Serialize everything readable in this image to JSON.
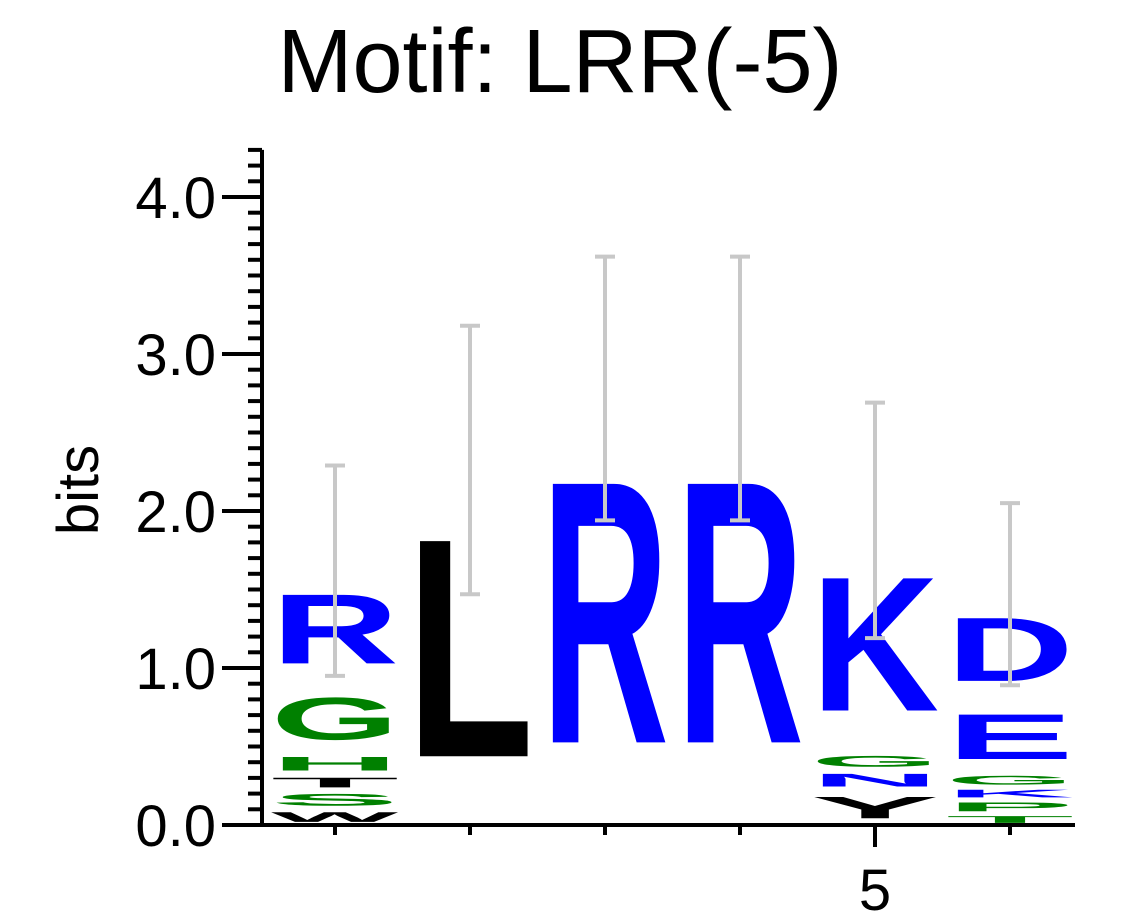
{
  "chart_data": {
    "type": "sequence-logo",
    "title": "Motif: LRR(-5)",
    "ylabel": "bits",
    "ylim": [
      0,
      4.3
    ],
    "yticks": [
      {
        "value": 0,
        "label": "0.0"
      },
      {
        "value": 1,
        "label": "1.0"
      },
      {
        "value": 2,
        "label": "2.0"
      },
      {
        "value": 3,
        "label": "3.0"
      },
      {
        "value": 4,
        "label": "4.0"
      }
    ],
    "xtick_labels": [
      {
        "position": 5,
        "label": "5"
      }
    ],
    "colors": {
      "hydrophobic": "#000000",
      "polar": "#008000",
      "charged": "#0000ff",
      "error_bar": "#c8c8c8"
    },
    "positions": [
      {
        "position": 1,
        "stack": [
          {
            "letter": "W",
            "color": "#000000",
            "height": 0.1
          },
          {
            "letter": "S",
            "color": "#008000",
            "height": 0.12
          },
          {
            "letter": "T",
            "color": "#000000",
            "height": 0.1
          },
          {
            "letter": "H",
            "color": "#008000",
            "height": 0.14
          },
          {
            "letter": "G",
            "color": "#008000",
            "height": 0.43
          },
          {
            "letter": "R",
            "color": "#0000ff",
            "height": 0.71
          }
        ],
        "error": [
          0.95,
          2.29
        ]
      },
      {
        "position": 2,
        "stack": [
          {
            "letter": "L",
            "color": "#000000",
            "height": 2.23
          }
        ],
        "error": [
          1.47,
          3.18
        ]
      },
      {
        "position": 3,
        "stack": [
          {
            "letter": "R",
            "color": "#0000ff",
            "height": 2.68
          }
        ],
        "error": [
          1.94,
          3.62
        ]
      },
      {
        "position": 4,
        "stack": [
          {
            "letter": "R",
            "color": "#0000ff",
            "height": 2.68
          }
        ],
        "error": [
          1.94,
          3.62
        ]
      },
      {
        "position": 5,
        "stack": [
          {
            "letter": "Y",
            "color": "#000000",
            "height": 0.22
          },
          {
            "letter": "N",
            "color": "#0000ff",
            "height": 0.13
          },
          {
            "letter": "G",
            "color": "#008000",
            "height": 0.11
          },
          {
            "letter": "K",
            "color": "#0000ff",
            "height": 1.37
          }
        ],
        "error": [
          1.19,
          2.69
        ]
      },
      {
        "position": 6,
        "stack": [
          {
            "letter": "T",
            "color": "#008000",
            "height": 0.07
          },
          {
            "letter": "P",
            "color": "#008000",
            "height": 0.09
          },
          {
            "letter": "K",
            "color": "#0000ff",
            "height": 0.08
          },
          {
            "letter": "G",
            "color": "#008000",
            "height": 0.09
          },
          {
            "letter": "E",
            "color": "#0000ff",
            "height": 0.46
          },
          {
            "letter": "D",
            "color": "#0000ff",
            "height": 0.65
          }
        ],
        "error": [
          0.89,
          2.05
        ]
      }
    ]
  }
}
